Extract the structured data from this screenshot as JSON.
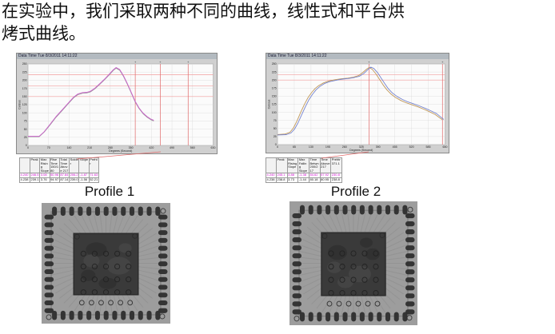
{
  "paragraph": {
    "line1": "在实验中，我们采取两种不同的曲线，线性式和平台烘",
    "line2": "烤式曲线。"
  },
  "figure_labels": {
    "profile1": "Profile 1",
    "profile2": "Profile 2"
  },
  "colors": {
    "threshold_red": "#f29e9e",
    "cursor_red": "#e06868",
    "panel_bg": "#d0d0d0",
    "titlebar_bg": "#b3bac0",
    "profile1_curve": "#cc5fcc",
    "profile2_curve_a": "#c09858",
    "profile2_curve_b": "#7584cf"
  },
  "chart_data": [
    {
      "type": "line",
      "title_bar": "Data Time Tue 8/3/2011 14:11:22",
      "xlabel": "Degrees (Second)",
      "ylabel": "Celsius",
      "xlim": [
        0,
        630
      ],
      "ylim": [
        0,
        250
      ],
      "x_ticks": [
        0,
        70,
        140,
        210,
        280,
        350,
        420,
        490,
        560,
        630
      ],
      "y_ticks": [
        0,
        25,
        50,
        75,
        100,
        125,
        150,
        175,
        200,
        225,
        250
      ],
      "red_h_lines": [
        150,
        183,
        217
      ],
      "red_v_lines": [
        365,
        450,
        545
      ],
      "grid": true,
      "legend": "none",
      "series": [
        {
          "name": "profile1-shadow-curve",
          "color": "#9a9a9a",
          "points": [
            [
              0,
              27
            ],
            [
              38,
              27
            ],
            [
              55,
              41
            ],
            [
              75,
              63
            ],
            [
              95,
              86
            ],
            [
              115,
              106
            ],
            [
              135,
              126
            ],
            [
              155,
              146
            ],
            [
              170,
              156
            ],
            [
              185,
              160
            ],
            [
              200,
              161
            ],
            [
              212,
              164
            ],
            [
              228,
              174
            ],
            [
              245,
              188
            ],
            [
              262,
              203
            ],
            [
              278,
              218
            ],
            [
              290,
              230
            ],
            [
              300,
              237
            ],
            [
              312,
              231
            ],
            [
              325,
              212
            ],
            [
              338,
              188
            ],
            [
              352,
              160
            ],
            [
              365,
              133
            ],
            [
              378,
              113
            ],
            [
              392,
              97
            ],
            [
              406,
              86
            ],
            [
              418,
              79
            ],
            [
              428,
              75
            ]
          ]
        },
        {
          "name": "profile1-curve",
          "color": "#cc5fcc",
          "points": [
            [
              0,
              28
            ],
            [
              38,
              28
            ],
            [
              55,
              42
            ],
            [
              75,
              65
            ],
            [
              95,
              88
            ],
            [
              115,
              108
            ],
            [
              135,
              128
            ],
            [
              155,
              148
            ],
            [
              170,
              158
            ],
            [
              185,
              162
            ],
            [
              200,
              163
            ],
            [
              212,
              166
            ],
            [
              228,
              176
            ],
            [
              245,
              190
            ],
            [
              262,
              205
            ],
            [
              278,
              220
            ],
            [
              290,
              232
            ],
            [
              300,
              239
            ],
            [
              312,
              233
            ],
            [
              325,
              214
            ],
            [
              338,
              190
            ],
            [
              352,
              162
            ],
            [
              365,
              135
            ],
            [
              378,
              115
            ],
            [
              392,
              99
            ],
            [
              406,
              88
            ],
            [
              418,
              81
            ],
            [
              428,
              77
            ]
          ]
        }
      ]
    },
    {
      "type": "line",
      "title_bar": "Data Time Tue 8/3/2011 14:11:22",
      "xlabel": "Degrees (Second)",
      "ylabel": "Celsius",
      "xlim": [
        0,
        650
      ],
      "ylim": [
        0,
        250
      ],
      "x_ticks": [
        0,
        65,
        130,
        195,
        260,
        325,
        390,
        455,
        520,
        585,
        650
      ],
      "y_ticks": [
        0,
        25,
        50,
        75,
        100,
        125,
        150,
        175,
        200,
        225,
        250
      ],
      "red_h_lines": [
        200,
        217
      ],
      "red_v_lines": [
        355,
        640
      ],
      "grid": true,
      "legend": "none",
      "series": [
        {
          "name": "profile2-curve-tan",
          "color": "#c09858",
          "points": [
            [
              0,
              31
            ],
            [
              30,
              33
            ],
            [
              48,
              38
            ],
            [
              62,
              52
            ],
            [
              76,
              74
            ],
            [
              90,
              100
            ],
            [
              104,
              124
            ],
            [
              118,
              145
            ],
            [
              132,
              161
            ],
            [
              146,
              174
            ],
            [
              160,
              183
            ],
            [
              178,
              191
            ],
            [
              198,
              197
            ],
            [
              222,
              201
            ],
            [
              248,
              204
            ],
            [
              272,
              206
            ],
            [
              295,
              209
            ],
            [
              315,
              214
            ],
            [
              332,
              224
            ],
            [
              346,
              234
            ],
            [
              356,
              239
            ],
            [
              368,
              233
            ],
            [
              382,
              219
            ],
            [
              396,
              202
            ],
            [
              410,
              185
            ],
            [
              424,
              170
            ],
            [
              440,
              157
            ],
            [
              458,
              146
            ],
            [
              478,
              137
            ],
            [
              498,
              130
            ],
            [
              520,
              124
            ],
            [
              545,
              117
            ],
            [
              570,
              109
            ],
            [
              592,
              101
            ],
            [
              612,
              93
            ],
            [
              628,
              84
            ],
            [
              640,
              77
            ]
          ]
        },
        {
          "name": "profile2-curve-blue",
          "color": "#7584cf",
          "points": [
            [
              0,
              30
            ],
            [
              34,
              31
            ],
            [
              52,
              36
            ],
            [
              66,
              48
            ],
            [
              80,
              68
            ],
            [
              94,
              93
            ],
            [
              108,
              117
            ],
            [
              122,
              139
            ],
            [
              136,
              156
            ],
            [
              150,
              170
            ],
            [
              164,
              180
            ],
            [
              182,
              189
            ],
            [
              202,
              195
            ],
            [
              226,
              199
            ],
            [
              252,
              203
            ],
            [
              276,
              205
            ],
            [
              298,
              208
            ],
            [
              318,
              212
            ],
            [
              336,
              221
            ],
            [
              350,
              232
            ],
            [
              362,
              240
            ],
            [
              374,
              236
            ],
            [
              388,
              223
            ],
            [
              402,
              206
            ],
            [
              416,
              189
            ],
            [
              430,
              173
            ],
            [
              446,
              160
            ],
            [
              464,
              149
            ],
            [
              484,
              140
            ],
            [
              504,
              133
            ],
            [
              526,
              127
            ],
            [
              550,
              120
            ],
            [
              575,
              112
            ],
            [
              597,
              104
            ],
            [
              617,
              96
            ],
            [
              633,
              86
            ],
            [
              645,
              78
            ]
          ]
        }
      ]
    }
  ],
  "table1": {
    "headers": [
      "",
      "Peak",
      "Max Rising Slope",
      "Rise Time 150/180",
      "Total Time Above 217",
      "Solder",
      "Slope",
      "Prehtr"
    ],
    "rows": [
      [
        "4.240",
        "246.5",
        "3.08",
        "50.96",
        "87.84",
        "206.2",
        "-1.87",
        "71.63"
      ],
      [
        "4.238",
        "239.1",
        "3.76",
        "94.97",
        "87.14",
        "239.0",
        "-1.56",
        "52.21"
      ]
    ],
    "row_colors": [
      "#cc00cc",
      "#111111"
    ]
  },
  "table2": {
    "headers": [
      "",
      "Peak",
      "Max Rising Slope",
      "Max Falling Slope",
      "Time Betwn 200/217",
      "Time Above 217",
      "Prehtr 371.1"
    ],
    "rows": [
      [
        "4.240",
        "245.1",
        "3.88",
        "-1.38",
        "84.62",
        "57.92",
        "230.8"
      ],
      [
        "4.238",
        "238.8",
        "3.73",
        "-1.44",
        "80.18",
        "80.95",
        "238.8"
      ]
    ],
    "row_colors": [
      "#cc00cc",
      "#111111"
    ]
  }
}
